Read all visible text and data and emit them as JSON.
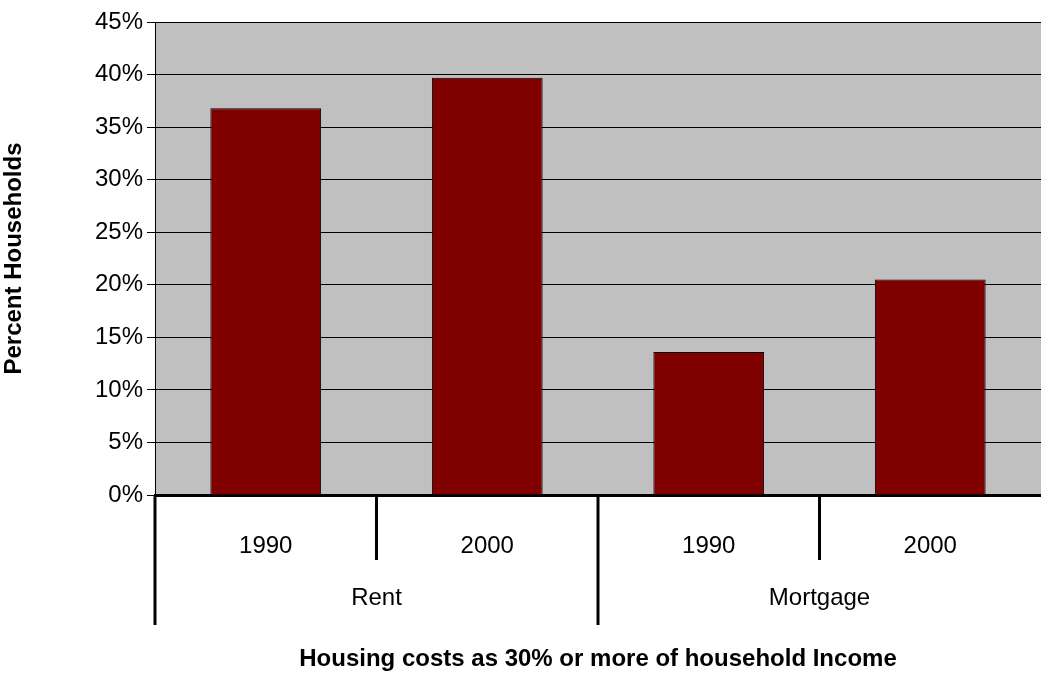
{
  "chart_data": {
    "type": "bar",
    "xlabel": "Housing costs as 30% or more of household Income",
    "ylabel": "Percent Households",
    "categories": [
      "1990",
      "2000",
      "1990",
      "2000"
    ],
    "values": [
      36.8,
      39.7,
      13.6,
      20.5
    ],
    "color": "#800000",
    "ylim": [
      0,
      45
    ],
    "yticks": [
      {
        "value": 0,
        "label": "0%"
      },
      {
        "value": 5,
        "label": "5%"
      },
      {
        "value": 10,
        "label": "10%"
      },
      {
        "value": 15,
        "label": "15%"
      },
      {
        "value": 20,
        "label": "20%"
      },
      {
        "value": 25,
        "label": "25%"
      },
      {
        "value": 30,
        "label": "30%"
      },
      {
        "value": 35,
        "label": "35%"
      },
      {
        "value": 40,
        "label": "40%"
      },
      {
        "value": 45,
        "label": "45%"
      }
    ],
    "grid": "y",
    "annotations": [
      "Rent",
      "Mortgage"
    ]
  }
}
